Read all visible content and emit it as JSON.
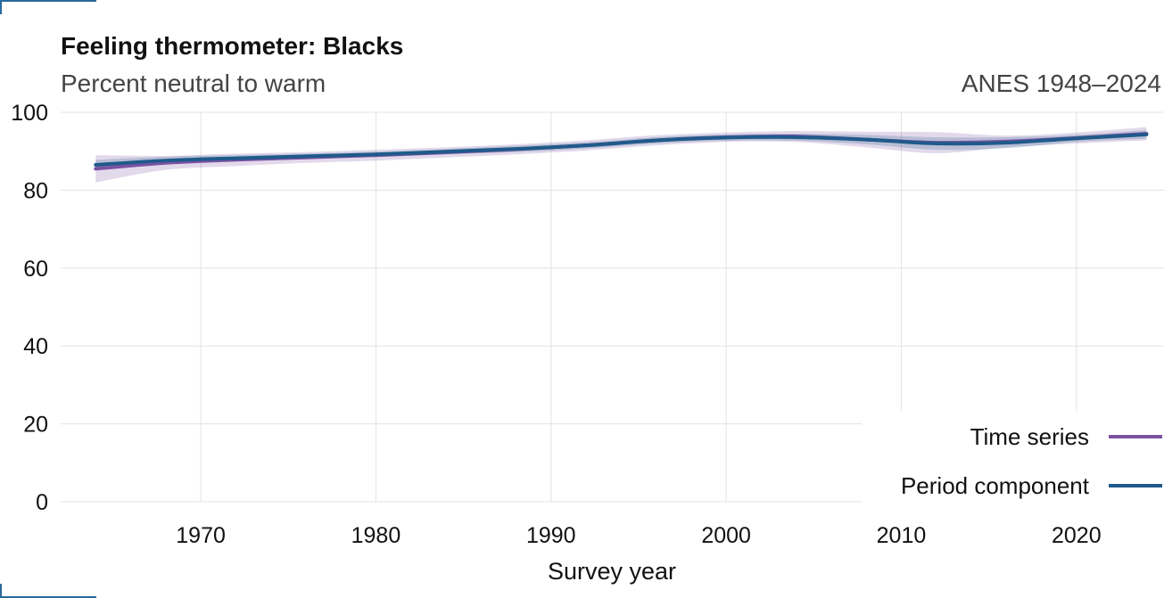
{
  "header": {
    "title": "Feeling thermometer: Blacks",
    "subtitle": "Percent neutral to warm",
    "source": "ANES 1948–2024"
  },
  "colors": {
    "time_series": "#7b52a3",
    "period_component": "#1f5a8a",
    "grid": "#e3e3e3",
    "frame_accent": "#2a6a9a"
  },
  "chart_data": {
    "type": "line",
    "title": "Feeling thermometer: Blacks",
    "subtitle": "Percent neutral to warm",
    "xlabel": "Survey year",
    "ylabel": "",
    "xlim": [
      1962,
      2025
    ],
    "ylim": [
      0,
      100
    ],
    "x_ticks": [
      1970,
      1980,
      1990,
      2000,
      2010,
      2020
    ],
    "y_ticks": [
      0,
      20,
      40,
      60,
      80,
      100
    ],
    "grid": true,
    "legend_position": "bottom-right",
    "series": [
      {
        "name": "Time series",
        "color": "#7b52a3",
        "x": [
          1964,
          1968,
          1972,
          1976,
          1980,
          1984,
          1988,
          1992,
          1996,
          2000,
          2004,
          2008,
          2012,
          2016,
          2020,
          2024
        ],
        "y": [
          85.5,
          87.0,
          87.8,
          88.4,
          89.0,
          89.7,
          90.5,
          91.5,
          92.8,
          93.6,
          93.8,
          93.0,
          92.2,
          92.5,
          93.4,
          94.5
        ],
        "lower": [
          82.0,
          85.2,
          86.2,
          87.0,
          87.6,
          88.4,
          89.2,
          90.2,
          91.5,
          92.4,
          92.4,
          91.0,
          89.5,
          91.0,
          92.0,
          92.8
        ],
        "upper": [
          89.0,
          88.8,
          89.4,
          89.8,
          90.4,
          91.0,
          91.8,
          92.8,
          94.1,
          94.8,
          95.2,
          95.0,
          94.9,
          94.0,
          94.8,
          96.2
        ]
      },
      {
        "name": "Period component",
        "color": "#1f5a8a",
        "x": [
          1964,
          1968,
          1972,
          1976,
          1980,
          1984,
          1988,
          1992,
          1996,
          2000,
          2004,
          2008,
          2012,
          2016,
          2020,
          2024
        ],
        "y": [
          86.5,
          87.6,
          88.2,
          88.7,
          89.2,
          89.9,
          90.6,
          91.5,
          92.8,
          93.5,
          93.6,
          93.0,
          92.0,
          92.2,
          93.3,
          94.3
        ],
        "lower": [
          85.2,
          86.6,
          87.4,
          88.0,
          88.5,
          89.2,
          89.8,
          90.7,
          92.0,
          92.7,
          92.7,
          91.8,
          90.4,
          90.8,
          92.4,
          93.2
        ],
        "upper": [
          87.8,
          88.6,
          89.0,
          89.4,
          89.9,
          90.6,
          91.4,
          92.3,
          93.6,
          94.3,
          94.5,
          94.2,
          93.6,
          93.6,
          94.2,
          95.4
        ]
      }
    ]
  }
}
